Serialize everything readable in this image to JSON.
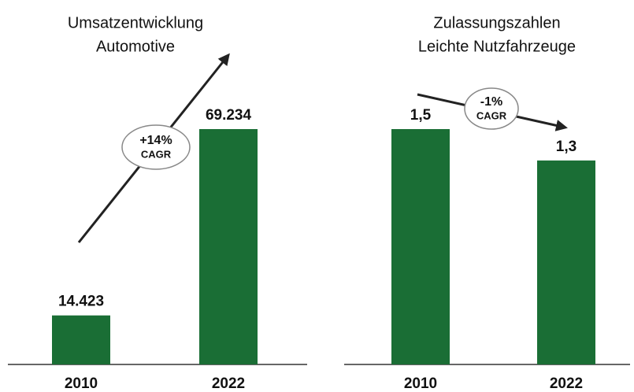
{
  "chart_data": [
    {
      "type": "bar",
      "title": [
        "Umsatzentwicklung",
        "Automotive"
      ],
      "categories": [
        "2010",
        "2022"
      ],
      "values": [
        14423,
        69234
      ],
      "value_labels": [
        "14.423",
        "69.234"
      ],
      "color": "#1a6e35",
      "annotation": [
        "+14%",
        "CAGR"
      ]
    },
    {
      "type": "bar",
      "title": [
        "Zulassungszahlen",
        "Leichte Nutzfahrzeuge"
      ],
      "categories": [
        "2010",
        "2022"
      ],
      "values": [
        1.5,
        1.3
      ],
      "value_labels": [
        "1,5",
        "1,3"
      ],
      "color": "#1a6e35",
      "annotation": [
        "-1%",
        "CAGR"
      ]
    }
  ]
}
